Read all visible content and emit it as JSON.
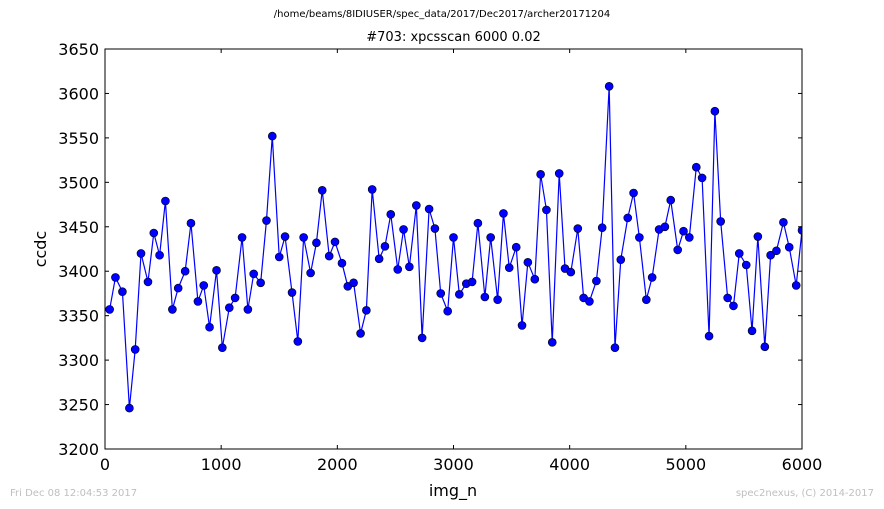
{
  "figure": {
    "suptitle": "/home/beams/8IDIUSER/spec_data/2017/Dec2017/archer20171204",
    "timestamp": "Fri Dec 08 12:04:53 2017",
    "credit": "spec2nexus, (C) 2014-2017"
  },
  "chart_data": {
    "type": "line",
    "title": "#703: xpcsscan 6000 0.02",
    "xlabel": "img_n",
    "ylabel": "ccdc",
    "xlim": [
      0,
      6000
    ],
    "ylim": [
      3200,
      3650
    ],
    "xticks": [
      0,
      1000,
      2000,
      3000,
      4000,
      5000,
      6000
    ],
    "yticks": [
      3200,
      3250,
      3300,
      3350,
      3400,
      3450,
      3500,
      3550,
      3600,
      3650
    ],
    "grid": false,
    "marker": "circle",
    "color": "#0000ff",
    "series": [
      {
        "x": [
          40,
          90,
          150,
          210,
          260,
          310,
          370,
          420,
          470,
          520,
          580,
          630,
          690,
          740,
          800,
          850,
          900,
          960,
          1010,
          1070,
          1120,
          1180,
          1230,
          1280,
          1340,
          1390,
          1440,
          1500,
          1550,
          1610,
          1660,
          1710,
          1770,
          1820,
          1870,
          1930,
          1980,
          2040,
          2090,
          2140,
          2200,
          2250,
          2300,
          2360,
          2410,
          2460,
          2520,
          2570,
          2620,
          2680,
          2730,
          2790,
          2840,
          2890,
          2950,
          3000,
          3050,
          3110,
          3160,
          3210,
          3270,
          3320,
          3380,
          3430,
          3480,
          3540,
          3590,
          3640,
          3700,
          3750,
          3800,
          3850,
          3910,
          3960,
          4010,
          4070,
          4120,
          4170,
          4230,
          4280,
          4340,
          4390,
          4440,
          4500,
          4550,
          4600,
          4660,
          4710,
          4770,
          4820,
          4870,
          4930,
          4980,
          5030,
          5090,
          5140,
          5200,
          5250,
          5300,
          5360,
          5410,
          5460,
          5520,
          5570,
          5620,
          5680,
          5730,
          5780,
          5840,
          5890,
          5950,
          6000
        ],
        "y": [
          3357,
          3393,
          3377,
          3246,
          3312,
          3420,
          3388,
          3443,
          3418,
          3479,
          3357,
          3381,
          3400,
          3454,
          3366,
          3384,
          3337,
          3401,
          3314,
          3359,
          3370,
          3438,
          3357,
          3397,
          3387,
          3457,
          3552,
          3416,
          3439,
          3376,
          3321,
          3438,
          3398,
          3432,
          3491,
          3417,
          3433,
          3409,
          3383,
          3387,
          3330,
          3356,
          3492,
          3414,
          3428,
          3464,
          3402,
          3447,
          3405,
          3474,
          3325,
          3470,
          3448,
          3375,
          3355,
          3438,
          3374,
          3386,
          3388,
          3454,
          3371,
          3438,
          3368,
          3465,
          3404,
          3427,
          3339,
          3410,
          3391,
          3509,
          3469,
          3320,
          3510,
          3403,
          3399,
          3448,
          3370,
          3366,
          3389,
          3449,
          3608,
          3314,
          3413,
          3460,
          3488,
          3438,
          3368,
          3393,
          3447,
          3450,
          3480,
          3424,
          3445,
          3438,
          3517,
          3505,
          3327,
          3580,
          3456,
          3370,
          3361,
          3420,
          3407,
          3333,
          3439,
          3315,
          3418,
          3423,
          3455,
          3427,
          3384,
          3446
        ]
      }
    ]
  }
}
